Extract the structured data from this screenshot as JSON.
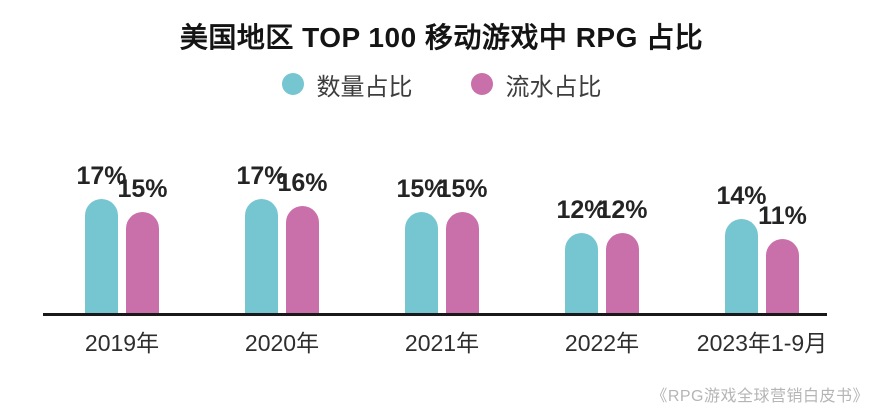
{
  "title": "美国地区 TOP 100 移动游戏中 RPG 占比",
  "source": "《RPG游戏全球营销白皮书》",
  "colors": {
    "quantity_share": "#75C6D1",
    "revenue_share": "#C96FA9",
    "axis": "#191919",
    "label_text": "#242424",
    "source_text": "#b5b5b5"
  },
  "chart_data": {
    "type": "bar",
    "title": "美国地区 TOP 100 移动游戏中 RPG 占比",
    "categories": [
      "2019年",
      "2020年",
      "2021年",
      "2022年",
      "2023年1-9月"
    ],
    "series": [
      {
        "name": "数量占比",
        "key": "quantity-share",
        "color": "#75C6D1",
        "values": [
          17,
          17,
          15,
          12,
          14
        ],
        "labels": [
          "17%",
          "17%",
          "15%",
          "12%",
          "14%"
        ]
      },
      {
        "name": "流水占比",
        "key": "revenue-share",
        "color": "#C96FA9",
        "values": [
          15,
          16,
          15,
          12,
          11
        ],
        "labels": [
          "15%",
          "16%",
          "15%",
          "12%",
          "11%"
        ]
      }
    ],
    "unit": "%",
    "ylim": [
      0,
      17
    ],
    "xlabel": "",
    "ylabel": "",
    "grid": false,
    "legend_position": "top",
    "value_labels_shown": true,
    "bar_shape": "rounded-top"
  }
}
